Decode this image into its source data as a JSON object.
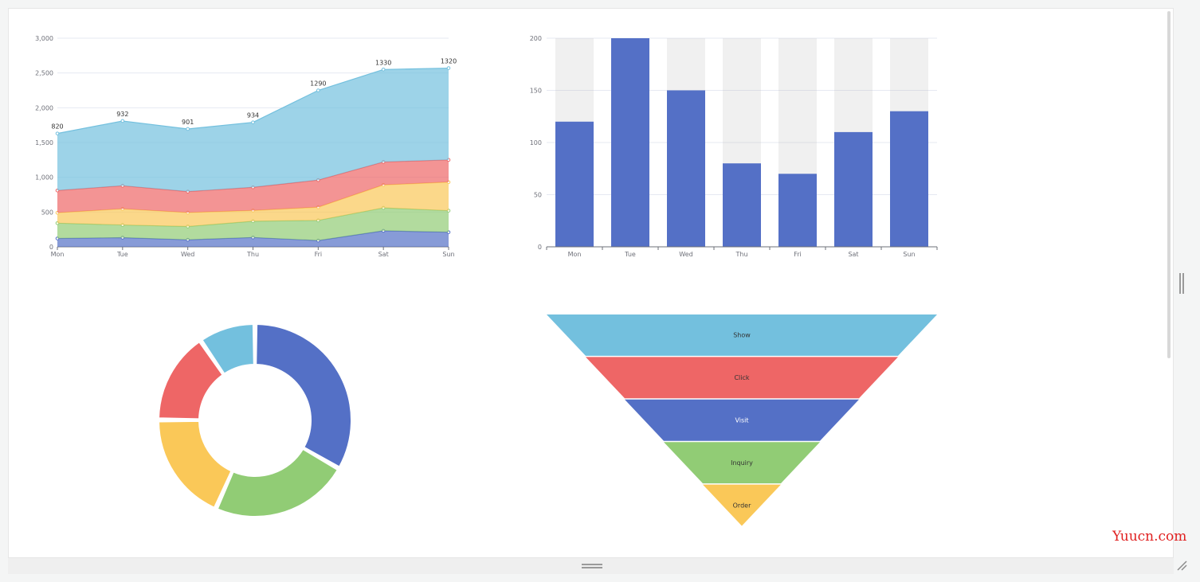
{
  "watermark": "Yuucn.com",
  "colors": {
    "blue": "#5470c6",
    "green": "#91cc75",
    "yellow": "#fac858",
    "red": "#ee6666",
    "cyan": "#73c0de"
  },
  "icons": {
    "side_handle": "drag-handle-icon",
    "bottom_handle": "drag-handle-icon",
    "resize": "resize-grip-icon"
  },
  "chart_data": [
    {
      "type": "area",
      "stacked": true,
      "categories": [
        "Mon",
        "Tue",
        "Wed",
        "Thu",
        "Fri",
        "Sat",
        "Sun"
      ],
      "ylim": [
        0,
        3000
      ],
      "yticks": [
        "0",
        "500",
        "1,000",
        "1,500",
        "2,000",
        "2,500",
        "3,000"
      ],
      "grid": true,
      "series": [
        {
          "values": [
            120,
            132,
            101,
            134,
            90,
            230,
            210
          ]
        },
        {
          "values": [
            220,
            182,
            191,
            234,
            290,
            330,
            310
          ]
        },
        {
          "values": [
            150,
            232,
            201,
            154,
            190,
            330,
            410
          ]
        },
        {
          "values": [
            320,
            332,
            301,
            334,
            390,
            330,
            320
          ]
        },
        {
          "values": [
            820,
            932,
            901,
            934,
            1290,
            1330,
            1320
          ],
          "labels": [
            "820",
            "932",
            "901",
            "934",
            "1290",
            "1330",
            "1320"
          ]
        }
      ]
    },
    {
      "type": "bar",
      "categories": [
        "Mon",
        "Tue",
        "Wed",
        "Thu",
        "Fri",
        "Sat",
        "Sun"
      ],
      "values": [
        120,
        200,
        150,
        80,
        70,
        110,
        130
      ],
      "background_bar": true,
      "ylim": [
        0,
        200
      ],
      "yticks": [
        "0",
        "50",
        "100",
        "150",
        "200"
      ],
      "grid": true
    },
    {
      "type": "pie",
      "style": "donut",
      "values": [
        1048,
        735,
        580,
        484,
        300
      ]
    },
    {
      "type": "funnel",
      "categories": [
        "Show",
        "Click",
        "Visit",
        "Inquiry",
        "Order"
      ],
      "values": [
        100,
        80,
        60,
        40,
        20
      ]
    }
  ]
}
